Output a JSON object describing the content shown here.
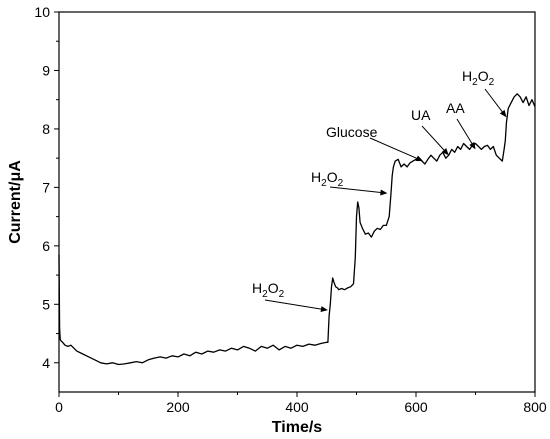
{
  "chart_data": {
    "type": "line",
    "title": "",
    "xlabel": "Time/s",
    "ylabel": "Current/μA",
    "xlim": [
      0,
      800
    ],
    "ylim": [
      3.5,
      10
    ],
    "xticks": [
      "0",
      "200",
      "400",
      "600",
      "800"
    ],
    "yticks": [
      "4",
      "5",
      "6",
      "7",
      "8",
      "9",
      "10"
    ],
    "grid": false,
    "legend": "none",
    "line_color": "#000000",
    "series": [
      {
        "x": [
          0,
          1,
          2,
          3,
          6,
          10,
          15,
          20,
          30,
          40,
          50,
          60,
          70,
          80,
          90,
          100,
          110,
          120,
          130,
          140,
          150,
          160,
          170,
          180,
          190,
          200,
          210,
          220,
          230,
          240,
          250,
          260,
          270,
          280,
          290,
          300,
          310,
          320,
          330,
          340,
          350,
          360,
          370,
          380,
          390,
          400,
          410,
          420,
          430,
          440,
          450,
          452,
          454,
          456,
          458,
          460,
          462,
          465,
          468,
          470,
          475,
          480,
          485,
          490,
          495,
          498,
          500,
          502,
          504,
          506,
          508,
          510,
          515,
          520,
          525,
          530,
          535,
          540,
          545,
          550,
          555,
          558,
          560,
          562,
          565,
          570,
          575,
          580,
          585,
          590,
          595,
          600,
          605,
          610,
          615,
          620,
          625,
          630,
          635,
          640,
          645,
          650,
          655,
          660,
          665,
          670,
          675,
          680,
          685,
          690,
          695,
          700,
          705,
          710,
          715,
          720,
          725,
          730,
          735,
          740,
          745,
          748,
          750,
          752,
          755,
          760,
          765,
          770,
          775,
          780,
          785,
          790,
          795,
          800
        ],
        "y": [
          5.85,
          4.6,
          4.4,
          4.38,
          4.35,
          4.3,
          4.28,
          4.3,
          4.2,
          4.15,
          4.1,
          4.05,
          4.0,
          3.98,
          4.0,
          3.97,
          3.98,
          4.0,
          4.02,
          4.0,
          4.05,
          4.08,
          4.1,
          4.08,
          4.12,
          4.1,
          4.15,
          4.12,
          4.18,
          4.15,
          4.2,
          4.18,
          4.22,
          4.2,
          4.25,
          4.22,
          4.28,
          4.25,
          4.2,
          4.28,
          4.25,
          4.3,
          4.22,
          4.28,
          4.25,
          4.3,
          4.28,
          4.32,
          4.3,
          4.33,
          4.35,
          4.35,
          4.8,
          5.0,
          5.3,
          5.45,
          5.38,
          5.3,
          5.28,
          5.25,
          5.27,
          5.25,
          5.28,
          5.3,
          5.35,
          5.8,
          6.5,
          6.75,
          6.65,
          6.4,
          6.35,
          6.3,
          6.2,
          6.22,
          6.15,
          6.25,
          6.3,
          6.28,
          6.35,
          6.35,
          6.5,
          6.9,
          7.2,
          7.35,
          7.45,
          7.48,
          7.35,
          7.4,
          7.35,
          7.42,
          7.45,
          7.48,
          7.5,
          7.45,
          7.4,
          7.48,
          7.55,
          7.5,
          7.45,
          7.55,
          7.6,
          7.5,
          7.55,
          7.65,
          7.6,
          7.7,
          7.65,
          7.75,
          7.7,
          7.65,
          7.72,
          7.75,
          7.7,
          7.65,
          7.7,
          7.72,
          7.65,
          7.7,
          7.55,
          7.5,
          7.45,
          7.65,
          7.8,
          8.1,
          8.35,
          8.45,
          8.55,
          8.6,
          8.55,
          8.45,
          8.55,
          8.4,
          8.5,
          8.38
        ]
      }
    ],
    "annotations": [
      {
        "label": "H2O2",
        "text": "H",
        "sub": "2",
        "tail": "O",
        "sub2": "2",
        "x": 452,
        "y": 4.9
      },
      {
        "label": "H2O2",
        "text": "H",
        "sub": "2",
        "tail": "O",
        "sub2": "2",
        "x": 552,
        "y": 6.9
      },
      {
        "label": "Glucose",
        "text": "Glucose",
        "x": 612,
        "y": 7.45
      },
      {
        "label": "UA",
        "text": "UA",
        "x": 655,
        "y": 7.55
      },
      {
        "label": "AA",
        "text": "AA",
        "x": 700,
        "y": 7.65
      },
      {
        "label": "H2O2",
        "text": "H",
        "sub": "2",
        "tail": "O",
        "sub2": "2",
        "x": 752,
        "y": 8.2
      }
    ]
  }
}
